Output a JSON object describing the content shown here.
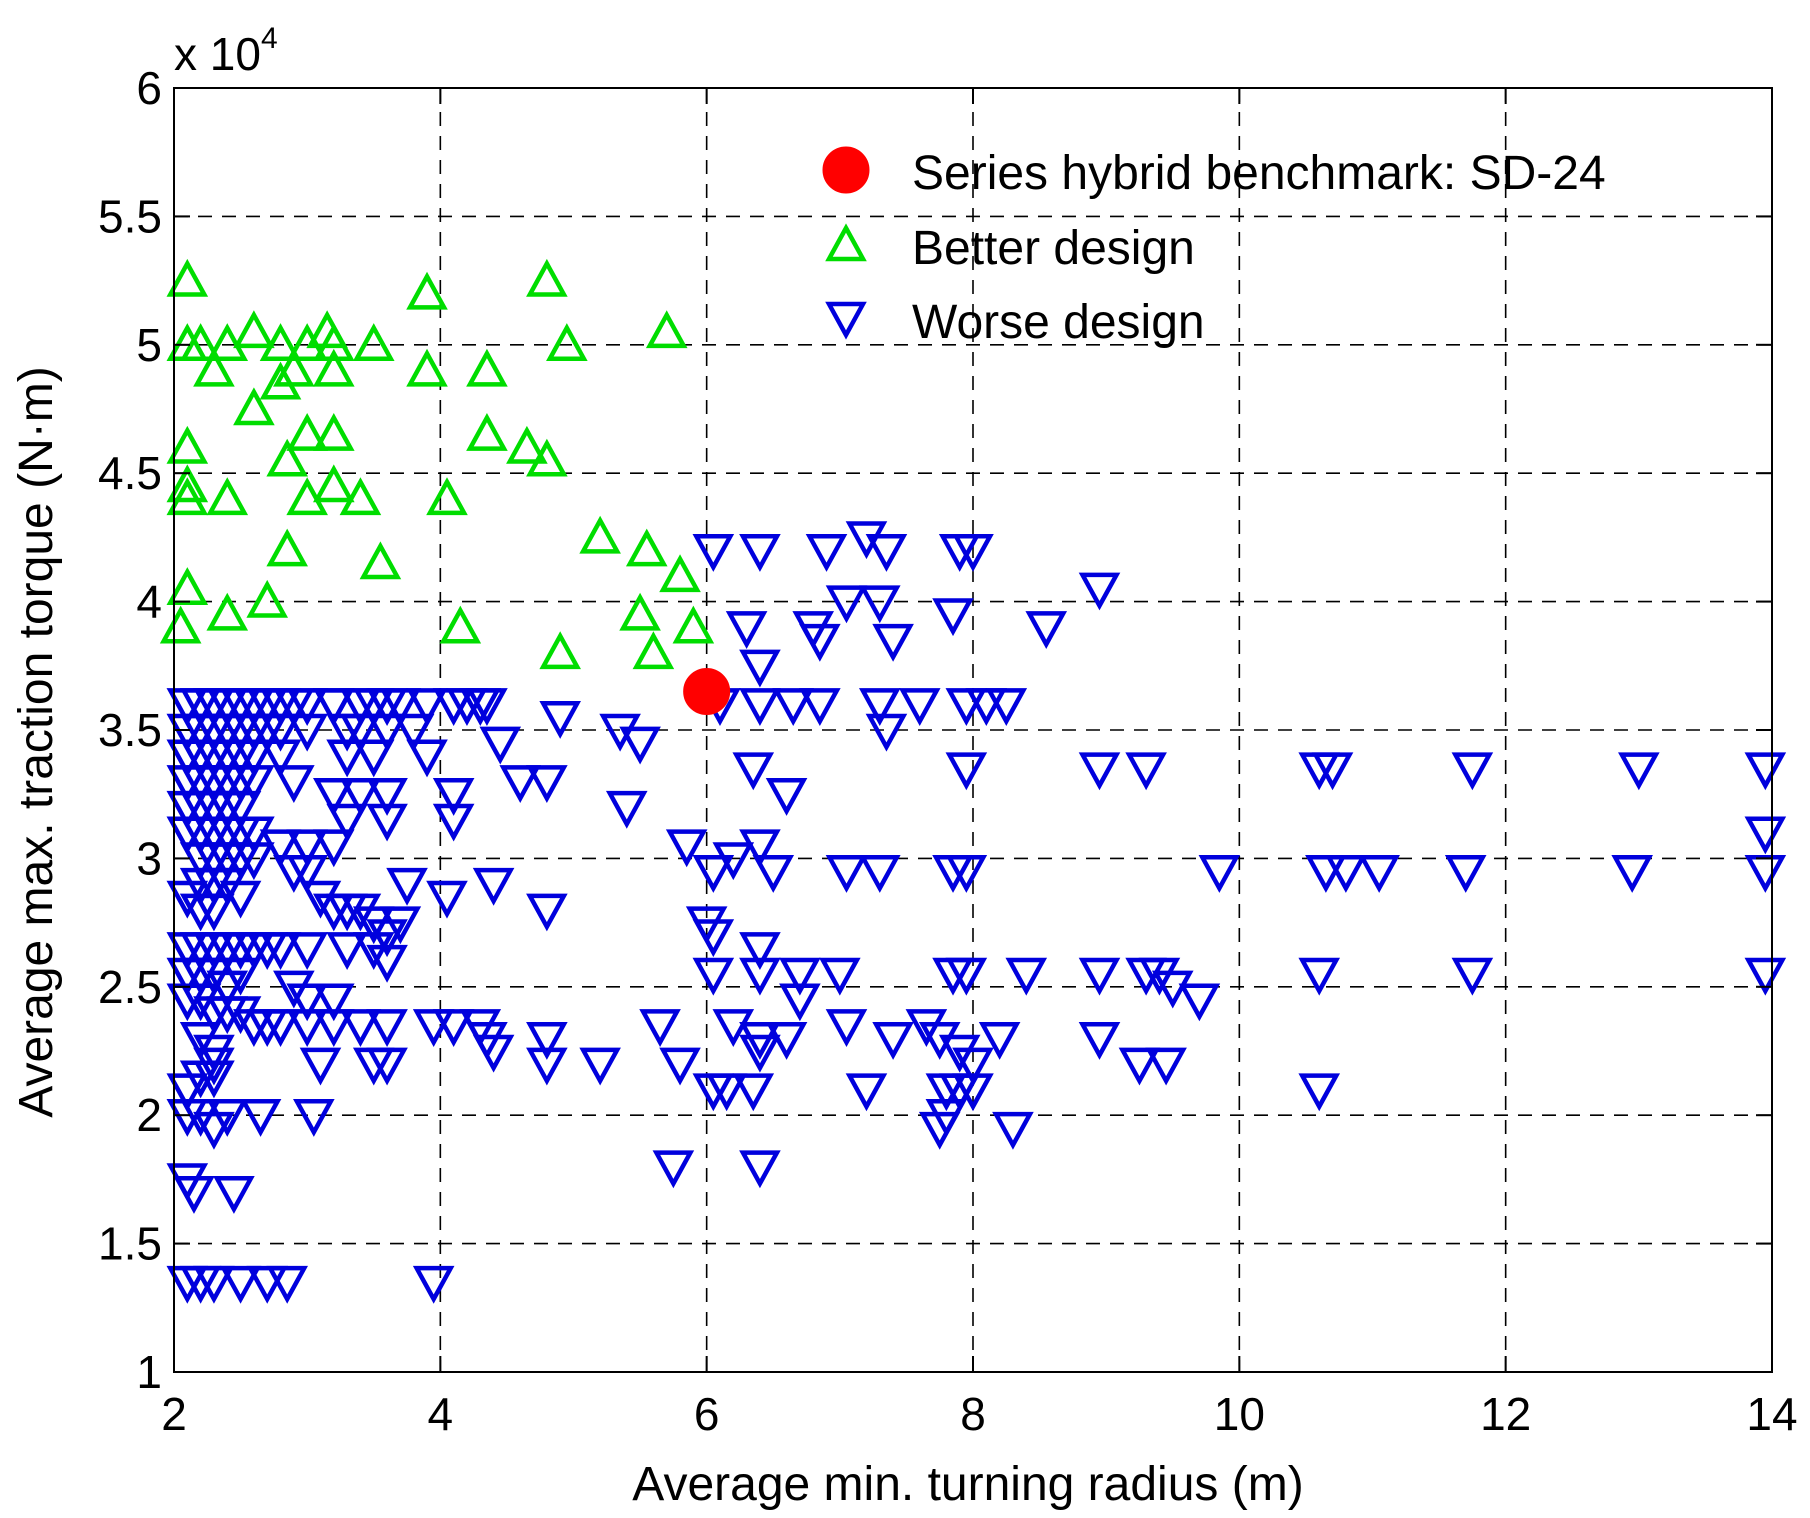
{
  "chart_data": {
    "type": "scatter",
    "xlabel": "Average min. turning radius (m)",
    "ylabel": "Average max. traction torque (N·m)",
    "y_multiplier": "x 10",
    "y_multiplier_exponent": "4",
    "xlim": [
      2,
      14
    ],
    "ylim": [
      1,
      6
    ],
    "xticks": [
      "2",
      "4",
      "6",
      "8",
      "10",
      "12",
      "14"
    ],
    "yticks": [
      "1",
      "1.5",
      "2",
      "2.5",
      "3",
      "3.5",
      "4",
      "4.5",
      "5",
      "5.5",
      "6"
    ],
    "grid": true,
    "legend_position": "top-right",
    "colors": {
      "benchmark": "#ff0000",
      "better": "#00dd00",
      "worse": "#0000dd"
    },
    "series": [
      {
        "name": "Series hybrid benchmark: SD-24",
        "marker": "circle",
        "points": [
          [
            6.0,
            3.65
          ]
        ]
      },
      {
        "name": "Better design",
        "marker": "triangle-up",
        "points": [
          [
            2.1,
            5.25
          ],
          [
            2.1,
            5.0
          ],
          [
            2.2,
            5.0
          ],
          [
            2.4,
            5.0
          ],
          [
            2.6,
            5.05
          ],
          [
            2.8,
            5.0
          ],
          [
            3.0,
            5.0
          ],
          [
            3.15,
            5.05
          ],
          [
            3.2,
            5.0
          ],
          [
            3.5,
            5.0
          ],
          [
            3.9,
            5.2
          ],
          [
            4.8,
            5.25
          ],
          [
            4.95,
            5.0
          ],
          [
            5.7,
            5.05
          ],
          [
            2.3,
            4.9
          ],
          [
            2.6,
            4.75
          ],
          [
            2.8,
            4.85
          ],
          [
            2.9,
            4.9
          ],
          [
            3.2,
            4.9
          ],
          [
            3.9,
            4.9
          ],
          [
            4.35,
            4.9
          ],
          [
            3.0,
            4.65
          ],
          [
            3.2,
            4.65
          ],
          [
            4.35,
            4.65
          ],
          [
            4.65,
            4.6
          ],
          [
            4.8,
            4.55
          ],
          [
            2.85,
            4.55
          ],
          [
            2.1,
            4.6
          ],
          [
            2.1,
            4.45
          ],
          [
            2.1,
            4.4
          ],
          [
            2.4,
            4.4
          ],
          [
            3.0,
            4.4
          ],
          [
            3.2,
            4.45
          ],
          [
            3.4,
            4.4
          ],
          [
            4.05,
            4.4
          ],
          [
            2.85,
            4.2
          ],
          [
            3.55,
            4.15
          ],
          [
            5.2,
            4.25
          ],
          [
            5.55,
            4.2
          ],
          [
            5.8,
            4.1
          ],
          [
            2.1,
            4.05
          ],
          [
            2.7,
            4.0
          ],
          [
            2.4,
            3.95
          ],
          [
            2.05,
            3.9
          ],
          [
            4.15,
            3.9
          ],
          [
            4.9,
            3.8
          ],
          [
            5.5,
            3.95
          ],
          [
            5.6,
            3.8
          ],
          [
            5.9,
            3.9
          ]
        ]
      },
      {
        "name": "Worse design",
        "marker": "triangle-down",
        "points": [
          [
            2.1,
            3.6
          ],
          [
            2.2,
            3.6
          ],
          [
            2.3,
            3.6
          ],
          [
            2.4,
            3.6
          ],
          [
            2.5,
            3.6
          ],
          [
            2.6,
            3.6
          ],
          [
            2.7,
            3.6
          ],
          [
            2.8,
            3.6
          ],
          [
            2.9,
            3.6
          ],
          [
            3.0,
            3.6
          ],
          [
            3.2,
            3.6
          ],
          [
            2.1,
            3.5
          ],
          [
            2.2,
            3.5
          ],
          [
            2.3,
            3.5
          ],
          [
            2.4,
            3.5
          ],
          [
            2.5,
            3.5
          ],
          [
            2.6,
            3.5
          ],
          [
            2.7,
            3.5
          ],
          [
            2.8,
            3.5
          ],
          [
            3.0,
            3.5
          ],
          [
            2.1,
            3.4
          ],
          [
            2.2,
            3.4
          ],
          [
            2.3,
            3.4
          ],
          [
            2.4,
            3.4
          ],
          [
            2.5,
            3.4
          ],
          [
            2.6,
            3.4
          ],
          [
            2.8,
            3.4
          ],
          [
            2.1,
            3.3
          ],
          [
            2.2,
            3.3
          ],
          [
            2.3,
            3.3
          ],
          [
            2.4,
            3.3
          ],
          [
            2.5,
            3.3
          ],
          [
            2.6,
            3.3
          ],
          [
            2.9,
            3.3
          ],
          [
            2.1,
            3.2
          ],
          [
            2.2,
            3.2
          ],
          [
            2.3,
            3.2
          ],
          [
            2.4,
            3.2
          ],
          [
            2.5,
            3.2
          ],
          [
            2.1,
            3.1
          ],
          [
            2.2,
            3.1
          ],
          [
            2.3,
            3.1
          ],
          [
            2.4,
            3.1
          ],
          [
            2.5,
            3.1
          ],
          [
            2.6,
            3.1
          ],
          [
            2.8,
            3.05
          ],
          [
            3.0,
            3.05
          ],
          [
            3.2,
            3.05
          ],
          [
            2.2,
            3.0
          ],
          [
            2.3,
            3.0
          ],
          [
            2.4,
            3.0
          ],
          [
            2.5,
            3.0
          ],
          [
            2.6,
            3.0
          ],
          [
            2.9,
            2.95
          ],
          [
            2.2,
            2.9
          ],
          [
            2.3,
            2.9
          ],
          [
            2.4,
            2.9
          ],
          [
            2.5,
            2.85
          ],
          [
            2.1,
            2.85
          ],
          [
            2.2,
            2.8
          ],
          [
            2.3,
            2.8
          ],
          [
            3.2,
            3.6
          ],
          [
            3.4,
            3.6
          ],
          [
            3.5,
            3.6
          ],
          [
            3.6,
            3.6
          ],
          [
            3.7,
            3.6
          ],
          [
            3.9,
            3.6
          ],
          [
            4.1,
            3.6
          ],
          [
            4.2,
            3.6
          ],
          [
            4.3,
            3.6
          ],
          [
            4.35,
            3.6
          ],
          [
            3.3,
            3.5
          ],
          [
            3.4,
            3.5
          ],
          [
            3.6,
            3.5
          ],
          [
            3.8,
            3.5
          ],
          [
            3.3,
            3.4
          ],
          [
            3.5,
            3.4
          ],
          [
            3.9,
            3.4
          ],
          [
            3.2,
            3.25
          ],
          [
            3.4,
            3.25
          ],
          [
            3.6,
            3.25
          ],
          [
            4.1,
            3.25
          ],
          [
            3.3,
            3.15
          ],
          [
            3.6,
            3.15
          ],
          [
            4.1,
            3.15
          ],
          [
            4.45,
            3.45
          ],
          [
            4.6,
            3.3
          ],
          [
            4.8,
            3.3
          ],
          [
            4.9,
            3.55
          ],
          [
            5.35,
            3.5
          ],
          [
            5.5,
            3.45
          ],
          [
            3.0,
            2.95
          ],
          [
            3.1,
            2.85
          ],
          [
            3.2,
            2.8
          ],
          [
            3.3,
            2.8
          ],
          [
            3.4,
            2.8
          ],
          [
            3.5,
            2.75
          ],
          [
            3.6,
            2.7
          ],
          [
            3.7,
            2.75
          ],
          [
            3.5,
            2.65
          ],
          [
            3.3,
            2.65
          ],
          [
            3.6,
            2.6
          ],
          [
            3.75,
            2.9
          ],
          [
            4.05,
            2.85
          ],
          [
            4.4,
            2.9
          ],
          [
            4.8,
            2.8
          ],
          [
            2.1,
            2.65
          ],
          [
            2.2,
            2.65
          ],
          [
            2.3,
            2.65
          ],
          [
            2.4,
            2.65
          ],
          [
            2.5,
            2.65
          ],
          [
            2.6,
            2.65
          ],
          [
            2.7,
            2.65
          ],
          [
            2.8,
            2.65
          ],
          [
            3.0,
            2.65
          ],
          [
            2.1,
            2.55
          ],
          [
            2.2,
            2.55
          ],
          [
            2.3,
            2.55
          ],
          [
            2.4,
            2.5
          ],
          [
            2.5,
            2.55
          ],
          [
            2.9,
            2.5
          ],
          [
            2.1,
            2.45
          ],
          [
            2.2,
            2.45
          ],
          [
            2.3,
            2.4
          ],
          [
            2.4,
            2.4
          ],
          [
            2.5,
            2.4
          ],
          [
            2.6,
            2.35
          ],
          [
            2.7,
            2.35
          ],
          [
            2.8,
            2.35
          ],
          [
            3.0,
            2.35
          ],
          [
            3.2,
            2.35
          ],
          [
            3.4,
            2.35
          ],
          [
            3.6,
            2.35
          ],
          [
            3.95,
            2.35
          ],
          [
            4.1,
            2.35
          ],
          [
            4.3,
            2.35
          ],
          [
            4.35,
            2.3
          ],
          [
            4.8,
            2.3
          ],
          [
            5.65,
            2.35
          ],
          [
            2.2,
            2.3
          ],
          [
            2.3,
            2.25
          ],
          [
            2.3,
            2.2
          ],
          [
            2.3,
            2.15
          ],
          [
            2.2,
            2.15
          ],
          [
            2.1,
            2.1
          ],
          [
            3.0,
            2.45
          ],
          [
            3.2,
            2.45
          ],
          [
            3.1,
            2.2
          ],
          [
            3.5,
            2.2
          ],
          [
            3.6,
            2.2
          ],
          [
            4.4,
            2.25
          ],
          [
            4.8,
            2.2
          ],
          [
            5.2,
            2.2
          ],
          [
            5.8,
            2.2
          ],
          [
            2.1,
            2.0
          ],
          [
            2.2,
            2.0
          ],
          [
            2.3,
            1.95
          ],
          [
            2.4,
            2.0
          ],
          [
            2.65,
            2.0
          ],
          [
            3.05,
            2.0
          ],
          [
            2.1,
            1.75
          ],
          [
            2.15,
            1.7
          ],
          [
            2.45,
            1.7
          ],
          [
            2.1,
            1.35
          ],
          [
            2.2,
            1.35
          ],
          [
            2.3,
            1.35
          ],
          [
            2.5,
            1.35
          ],
          [
            2.7,
            1.35
          ],
          [
            2.85,
            1.35
          ],
          [
            3.95,
            1.35
          ],
          [
            6.05,
            4.2
          ],
          [
            6.4,
            4.2
          ],
          [
            6.9,
            4.2
          ],
          [
            7.2,
            4.25
          ],
          [
            7.35,
            4.2
          ],
          [
            7.9,
            4.2
          ],
          [
            8.0,
            4.2
          ],
          [
            7.05,
            4.0
          ],
          [
            7.3,
            4.0
          ],
          [
            7.85,
            3.95
          ],
          [
            8.55,
            3.9
          ],
          [
            8.95,
            4.05
          ],
          [
            6.3,
            3.9
          ],
          [
            6.85,
            3.85
          ],
          [
            6.8,
            3.9
          ],
          [
            7.4,
            3.85
          ],
          [
            6.4,
            3.75
          ],
          [
            6.1,
            3.6
          ],
          [
            6.4,
            3.6
          ],
          [
            6.65,
            3.6
          ],
          [
            6.85,
            3.6
          ],
          [
            7.3,
            3.6
          ],
          [
            7.6,
            3.6
          ],
          [
            7.95,
            3.6
          ],
          [
            8.1,
            3.6
          ],
          [
            8.25,
            3.6
          ],
          [
            7.35,
            3.5
          ],
          [
            6.35,
            3.35
          ],
          [
            6.6,
            3.25
          ],
          [
            7.95,
            3.35
          ],
          [
            8.95,
            3.35
          ],
          [
            9.3,
            3.35
          ],
          [
            10.6,
            3.35
          ],
          [
            10.7,
            3.35
          ],
          [
            11.75,
            3.35
          ],
          [
            13.0,
            3.35
          ],
          [
            13.95,
            3.35
          ],
          [
            5.4,
            3.2
          ],
          [
            5.85,
            3.05
          ],
          [
            6.2,
            3.0
          ],
          [
            6.4,
            3.05
          ],
          [
            6.05,
            2.95
          ],
          [
            6.5,
            2.95
          ],
          [
            7.05,
            2.95
          ],
          [
            7.3,
            2.95
          ],
          [
            7.85,
            2.95
          ],
          [
            7.95,
            2.95
          ],
          [
            9.85,
            2.95
          ],
          [
            10.65,
            2.95
          ],
          [
            10.8,
            2.95
          ],
          [
            11.05,
            2.95
          ],
          [
            11.7,
            2.95
          ],
          [
            12.95,
            2.95
          ],
          [
            13.95,
            2.95
          ],
          [
            13.95,
            3.1
          ],
          [
            6.0,
            2.75
          ],
          [
            6.05,
            2.7
          ],
          [
            6.4,
            2.65
          ],
          [
            6.05,
            2.55
          ],
          [
            6.4,
            2.55
          ],
          [
            6.7,
            2.55
          ],
          [
            7.0,
            2.55
          ],
          [
            7.85,
            2.55
          ],
          [
            7.95,
            2.55
          ],
          [
            8.4,
            2.55
          ],
          [
            8.95,
            2.55
          ],
          [
            9.3,
            2.55
          ],
          [
            9.4,
            2.55
          ],
          [
            10.6,
            2.55
          ],
          [
            11.75,
            2.55
          ],
          [
            13.95,
            2.55
          ],
          [
            9.5,
            2.5
          ],
          [
            9.7,
            2.45
          ],
          [
            6.7,
            2.45
          ],
          [
            6.2,
            2.35
          ],
          [
            6.4,
            2.3
          ],
          [
            6.6,
            2.3
          ],
          [
            7.05,
            2.35
          ],
          [
            7.4,
            2.3
          ],
          [
            7.65,
            2.35
          ],
          [
            7.75,
            2.3
          ],
          [
            8.2,
            2.3
          ],
          [
            6.4,
            2.25
          ],
          [
            7.9,
            2.25
          ],
          [
            8.0,
            2.2
          ],
          [
            8.95,
            2.3
          ],
          [
            9.25,
            2.2
          ],
          [
            9.45,
            2.2
          ],
          [
            6.05,
            2.1
          ],
          [
            6.15,
            2.1
          ],
          [
            6.35,
            2.1
          ],
          [
            7.2,
            2.1
          ],
          [
            7.8,
            2.1
          ],
          [
            7.9,
            2.1
          ],
          [
            8.0,
            2.1
          ],
          [
            10.6,
            2.1
          ],
          [
            7.8,
            2.0
          ],
          [
            7.75,
            1.95
          ],
          [
            8.3,
            1.95
          ],
          [
            5.75,
            1.8
          ],
          [
            6.4,
            1.8
          ]
        ]
      }
    ]
  }
}
